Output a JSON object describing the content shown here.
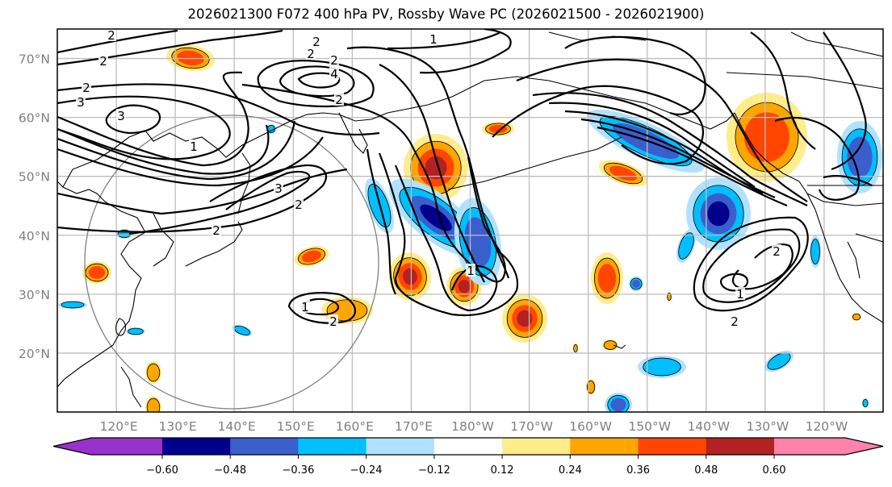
{
  "title": "2026021300 F072 400 hPa PV, Rossby Wave PC (2026021500 - 2026021900)",
  "chart_data": {
    "type": "map",
    "title": "2026021300 F072 400 hPa PV, Rossby Wave PC (2026021500 - 2026021900)",
    "projection": "equirectangular",
    "lon_range_east": [
      110,
      250
    ],
    "lat_range": [
      10,
      75
    ],
    "lat_ticks": [
      "70°N",
      "60°N",
      "50°N",
      "40°N",
      "30°N",
      "20°N"
    ],
    "lat_values": [
      70,
      60,
      50,
      40,
      30,
      20
    ],
    "lon_ticks": [
      "120°E",
      "130°E",
      "140°E",
      "150°E",
      "160°E",
      "170°E",
      "180°W",
      "170°W",
      "160°W",
      "150°W",
      "140°W",
      "130°W",
      "120°W"
    ],
    "lon_values": [
      120,
      130,
      140,
      150,
      160,
      170,
      180,
      190,
      200,
      210,
      220,
      230,
      240
    ],
    "grid": true,
    "contour_variable": "400 hPa PV (PVU)",
    "contour_labels": [
      "2",
      "1",
      "2",
      "2",
      "2",
      "4",
      "2",
      "2",
      "3",
      "3",
      "1",
      "2",
      "3",
      "2",
      "2",
      "1",
      "1",
      "2",
      "2",
      "2",
      "1"
    ],
    "fill_variable": "Rossby Wave PC",
    "colorbar": {
      "ticks": [
        "−0.60",
        "−0.48",
        "−0.36",
        "−0.24",
        "−0.12",
        "0.12",
        "0.24",
        "0.36",
        "0.48",
        "0.60"
      ],
      "tick_values": [
        -0.6,
        -0.48,
        -0.36,
        -0.24,
        -0.12,
        0.12,
        0.24,
        0.36,
        0.48,
        0.6
      ],
      "colors": [
        "#9932CC",
        "#00008B",
        "#3A5FCD",
        "#00BFFF",
        "#B0E2FF",
        "#FFFFFF",
        "#FFEC8B",
        "#FFA500",
        "#FF4500",
        "#B22222",
        "#FF82AB"
      ],
      "extend": "both"
    },
    "great_circle_color": "#808080"
  }
}
